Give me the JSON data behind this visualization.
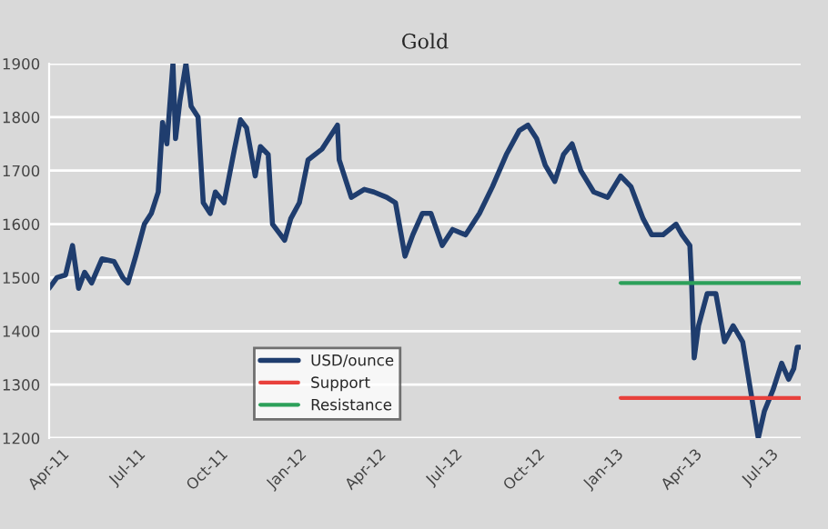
{
  "chart_data": {
    "type": "line",
    "title": "Gold",
    "xlim": [
      "2011-04-01",
      "2013-08-16"
    ],
    "ylim": [
      1200,
      1900
    ],
    "yticks": [
      1200,
      1300,
      1400,
      1500,
      1600,
      1700,
      1800,
      1900
    ],
    "xticks": [
      {
        "value": "2011-04-01",
        "label": "Apr-11"
      },
      {
        "value": "2011-07-01",
        "label": "Jul-11"
      },
      {
        "value": "2011-10-01",
        "label": "Oct-11"
      },
      {
        "value": "2012-01-01",
        "label": "Jan-12"
      },
      {
        "value": "2012-04-01",
        "label": "Apr-12"
      },
      {
        "value": "2012-07-01",
        "label": "Jul-12"
      },
      {
        "value": "2012-10-01",
        "label": "Oct-12"
      },
      {
        "value": "2013-01-01",
        "label": "Jan-13"
      },
      {
        "value": "2013-04-01",
        "label": "Apr-13"
      },
      {
        "value": "2013-07-01",
        "label": "Jul-13"
      }
    ],
    "grid": "y",
    "legend": "bottom",
    "marker": "none",
    "line_style": "solid",
    "series": [
      {
        "name": "USD/ounce",
        "color": "#1f3d6e",
        "x": [
          "2011-04-01",
          "2011-04-10",
          "2011-04-20",
          "2011-04-28",
          "2011-05-05",
          "2011-05-12",
          "2011-05-20",
          "2011-06-01",
          "2011-06-15",
          "2011-06-25",
          "2011-07-01",
          "2011-07-10",
          "2011-07-20",
          "2011-07-28",
          "2011-08-05",
          "2011-08-10",
          "2011-08-15",
          "2011-08-22",
          "2011-08-25",
          "2011-08-30",
          "2011-09-06",
          "2011-09-12",
          "2011-09-20",
          "2011-09-26",
          "2011-10-04",
          "2011-10-10",
          "2011-10-20",
          "2011-11-01",
          "2011-11-08",
          "2011-11-15",
          "2011-11-25",
          "2011-12-01",
          "2011-12-10",
          "2011-12-15",
          "2011-12-29",
          "2012-01-05",
          "2012-01-15",
          "2012-01-25",
          "2012-02-10",
          "2012-02-28",
          "2012-03-01",
          "2012-03-15",
          "2012-03-30",
          "2012-04-10",
          "2012-04-25",
          "2012-05-05",
          "2012-05-16",
          "2012-05-25",
          "2012-06-05",
          "2012-06-15",
          "2012-06-28",
          "2012-07-10",
          "2012-07-25",
          "2012-08-10",
          "2012-08-25",
          "2012-09-10",
          "2012-09-25",
          "2012-10-05",
          "2012-10-15",
          "2012-10-25",
          "2012-11-05",
          "2012-11-15",
          "2012-11-25",
          "2012-12-05",
          "2012-12-20",
          "2013-01-05",
          "2013-01-20",
          "2013-02-01",
          "2013-02-15",
          "2013-02-25",
          "2013-03-10",
          "2013-03-25",
          "2013-04-01",
          "2013-04-10",
          "2013-04-12",
          "2013-04-15",
          "2013-04-20",
          "2013-04-30",
          "2013-05-10",
          "2013-05-20",
          "2013-05-30",
          "2013-06-10",
          "2013-06-20",
          "2013-06-28",
          "2013-07-05",
          "2013-07-15",
          "2013-07-25",
          "2013-08-02",
          "2013-08-08",
          "2013-08-12",
          "2013-08-15"
        ],
        "values": [
          1480,
          1500,
          1505,
          1560,
          1480,
          1510,
          1490,
          1535,
          1530,
          1500,
          1490,
          1540,
          1600,
          1620,
          1660,
          1790,
          1750,
          1900,
          1760,
          1830,
          1900,
          1820,
          1800,
          1640,
          1620,
          1660,
          1640,
          1740,
          1795,
          1780,
          1690,
          1745,
          1730,
          1600,
          1570,
          1610,
          1640,
          1720,
          1740,
          1785,
          1720,
          1650,
          1665,
          1660,
          1650,
          1640,
          1540,
          1580,
          1620,
          1620,
          1560,
          1590,
          1580,
          1620,
          1670,
          1730,
          1775,
          1785,
          1760,
          1710,
          1680,
          1730,
          1750,
          1700,
          1660,
          1650,
          1690,
          1670,
          1610,
          1580,
          1580,
          1600,
          1580,
          1560,
          1490,
          1350,
          1410,
          1470,
          1470,
          1380,
          1410,
          1380,
          1280,
          1200,
          1250,
          1290,
          1340,
          1310,
          1330,
          1370,
          1370
        ]
      },
      {
        "name": "Support",
        "color": "#e8413c",
        "x": [
          "2013-01-20",
          "2013-08-15"
        ],
        "values": [
          1275,
          1275
        ]
      },
      {
        "name": "Resistance",
        "color": "#2ca05a",
        "x": [
          "2013-01-20",
          "2013-08-15"
        ],
        "values": [
          1490,
          1490
        ]
      }
    ]
  }
}
